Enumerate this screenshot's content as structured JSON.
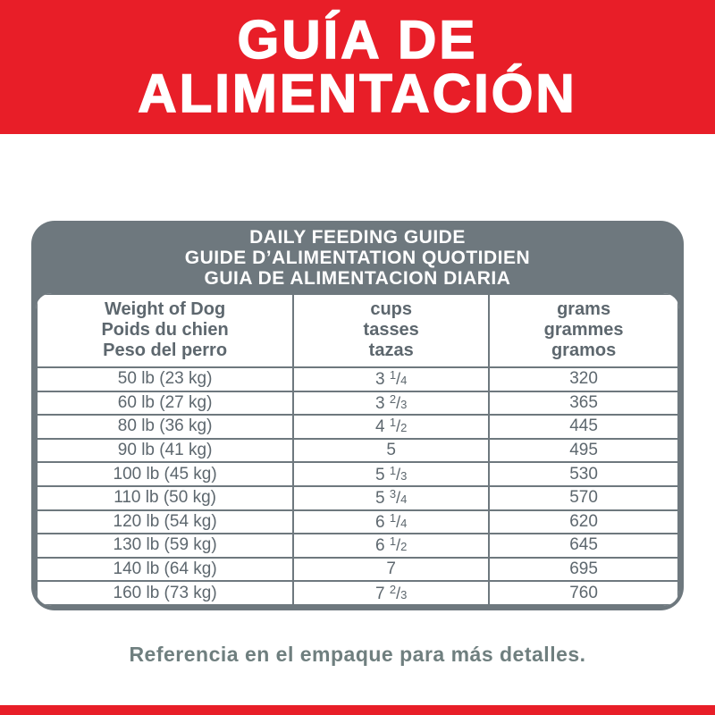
{
  "banner": {
    "title_line1": "GUÍA DE",
    "title_line2": "ALIMENTACIÓN"
  },
  "colors": {
    "brand_red": "#e81e28",
    "slate_gray": "#6e787e",
    "cell_text_gray": "#5d676e",
    "footnote_gray": "#6f7f7f"
  },
  "table": {
    "title_lines": [
      "DAILY FEEDING GUIDE",
      "GUIDE D’ALIMENTATION QUOTIDIEN",
      "GUIA DE ALIMENTACION DIARIA"
    ],
    "columns": [
      {
        "lines": [
          "Weight of Dog",
          "Poids du chien",
          "Peso del perro"
        ]
      },
      {
        "lines": [
          "cups",
          "tasses",
          "tazas"
        ]
      },
      {
        "lines": [
          "grams",
          "grammes",
          "gramos"
        ]
      }
    ],
    "rows": [
      {
        "weight": "50 lb (23 kg)",
        "cups": "3 1/4",
        "grams": "320"
      },
      {
        "weight": "60 lb (27 kg)",
        "cups": "3 2/3",
        "grams": "365"
      },
      {
        "weight": "80 lb (36 kg)",
        "cups": "4 1/2",
        "grams": "445"
      },
      {
        "weight": "90 lb (41 kg)",
        "cups": "5",
        "grams": "495"
      },
      {
        "weight": "100 lb (45 kg)",
        "cups": "5 1/3",
        "grams": "530"
      },
      {
        "weight": "110 lb (50 kg)",
        "cups": "5 3/4",
        "grams": "570"
      },
      {
        "weight": "120 lb (54 kg)",
        "cups": "6 1/4",
        "grams": "620"
      },
      {
        "weight": "130 lb (59 kg)",
        "cups": "6 1/2",
        "grams": "645"
      },
      {
        "weight": "140 lb (64 kg)",
        "cups": "7",
        "grams": "695"
      },
      {
        "weight": "160 lb (73 kg)",
        "cups": "7 2/3",
        "grams": "760"
      }
    ]
  },
  "footnote": "Referencia en el empaque para más detalles."
}
